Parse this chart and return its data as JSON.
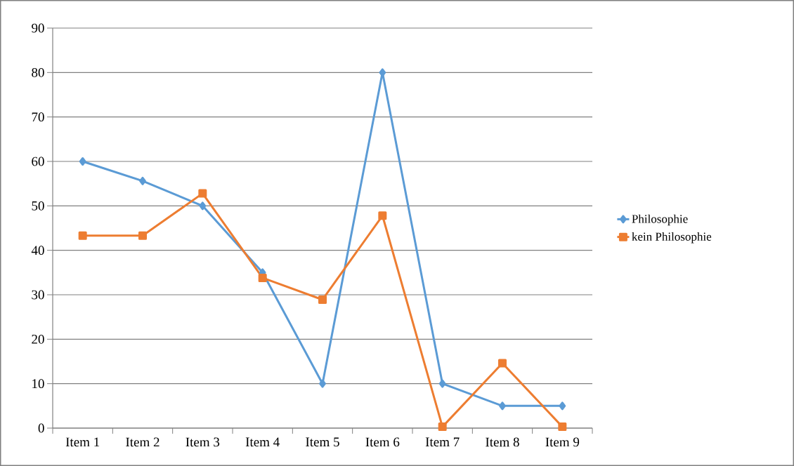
{
  "chart_data": {
    "type": "line",
    "categories": [
      "Item 1",
      "Item 2",
      "Item 3",
      "Item 4",
      "Item 5",
      "Item 6",
      "Item 7",
      "Item 8",
      "Item 9"
    ],
    "series": [
      {
        "name": "Philosophie",
        "color": "#5b9bd5",
        "marker": "diamond",
        "values": [
          60,
          55.6,
          50,
          35,
          10,
          80,
          10,
          5,
          5
        ]
      },
      {
        "name": "kein Philosophie",
        "color": "#ed7d31",
        "marker": "square",
        "values": [
          43.3,
          43.3,
          52.8,
          33.8,
          28.9,
          47.8,
          0.3,
          14.6,
          0.3
        ]
      }
    ],
    "ylim": [
      0,
      90
    ],
    "yticks": [
      0,
      10,
      20,
      30,
      40,
      50,
      60,
      70,
      80,
      90
    ],
    "grid": "y",
    "legend": "right"
  }
}
